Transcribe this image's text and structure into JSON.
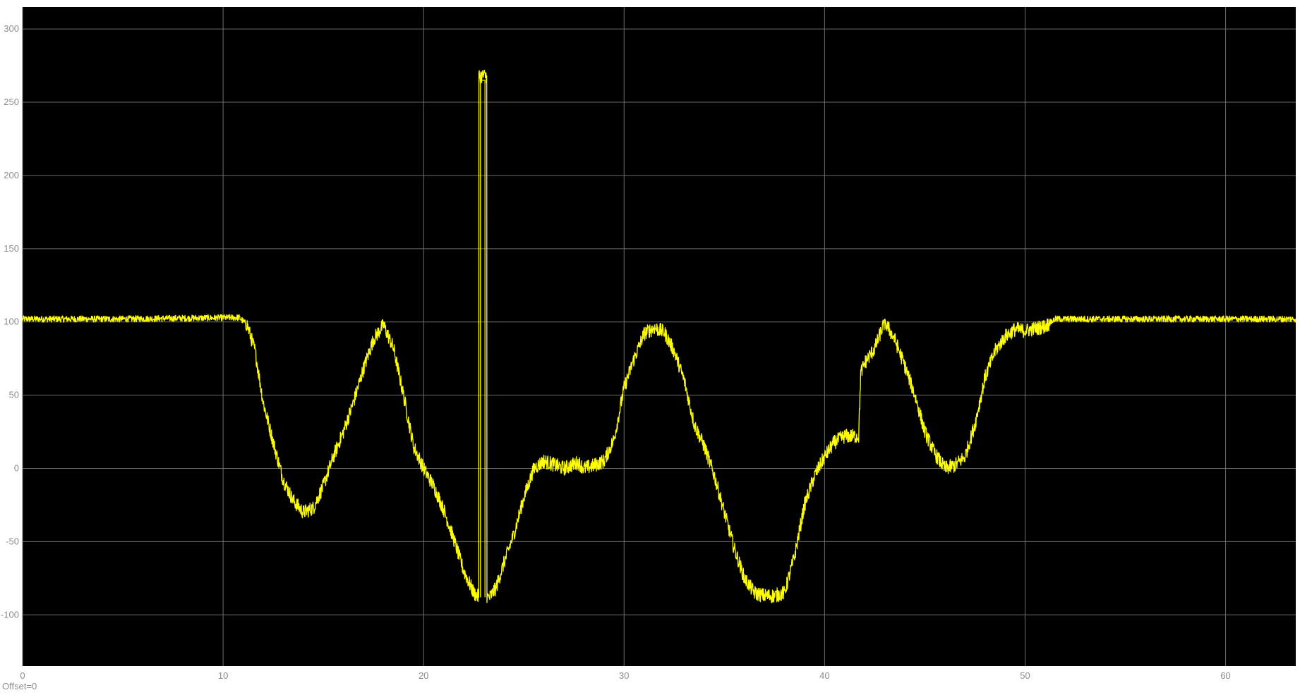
{
  "offset_label": "Offset=0",
  "colors": {
    "plot_background": "#000000",
    "grid": "#6e6e6e",
    "trace": "#ffff00",
    "tick_text": "#8c8c8c",
    "page_background": "#ffffff"
  },
  "chart_data": {
    "type": "line",
    "title": "",
    "xlabel": "",
    "ylabel": "",
    "grid": true,
    "xlim": [
      0,
      63.5
    ],
    "ylim": [
      -135,
      315
    ],
    "x_ticks": [
      0,
      10,
      20,
      30,
      40,
      50,
      60
    ],
    "y_ticks": [
      -100,
      -50,
      0,
      50,
      100,
      150,
      200,
      250,
      300
    ],
    "x_tick_labels": [
      "0",
      "10",
      "20",
      "30",
      "40",
      "50",
      "60"
    ],
    "y_tick_labels": [
      "-100",
      "-50",
      "0",
      "50",
      "100",
      "150",
      "200",
      "250",
      "300"
    ],
    "series": [
      {
        "color": "#ffff00",
        "noisy": true,
        "x": [
          0,
          5,
          10.8,
          11.2,
          11.6,
          12,
          12.5,
          13,
          13.5,
          14,
          14.5,
          15,
          15.5,
          16,
          16.5,
          17,
          17.5,
          18,
          18.5,
          19,
          19.5,
          20,
          20.5,
          21,
          21.5,
          22,
          22.5,
          22.75,
          22.76,
          23.15,
          23.16,
          23.3,
          23.6,
          24,
          24.5,
          25,
          25.5,
          26,
          27,
          27.7,
          28,
          28.5,
          29,
          29.5,
          30,
          30.5,
          31,
          31.5,
          32,
          32.5,
          33,
          33.5,
          34,
          34.5,
          35,
          35.5,
          36,
          36.5,
          37,
          37.5,
          38,
          38.5,
          39,
          39.5,
          40,
          40.5,
          41,
          41.7,
          41.8,
          42,
          42.5,
          43,
          43.5,
          44,
          44.5,
          45,
          45.5,
          46,
          46.5,
          47,
          47.5,
          48,
          48.5,
          49,
          49.5,
          50,
          51,
          51.5,
          52,
          55,
          58,
          63.5
        ],
        "y": [
          102,
          102,
          103,
          98,
          80,
          45,
          18,
          -8,
          -22,
          -30,
          -27,
          -12,
          8,
          25,
          45,
          68,
          88,
          98,
          82,
          50,
          15,
          0,
          -12,
          -28,
          -48,
          -70,
          -85,
          -88,
          268,
          268,
          -88,
          -88,
          -82,
          -65,
          -45,
          -20,
          0,
          5,
          0,
          4,
          0,
          2,
          5,
          20,
          55,
          75,
          92,
          96,
          93,
          80,
          60,
          30,
          15,
          -5,
          -30,
          -55,
          -75,
          -85,
          -87,
          -87,
          -85,
          -60,
          -25,
          -5,
          8,
          18,
          22,
          22,
          65,
          72,
          82,
          100,
          88,
          70,
          50,
          25,
          10,
          0,
          2,
          8,
          30,
          62,
          80,
          90,
          95,
          94,
          97,
          102,
          102,
          102,
          102,
          102
        ]
      }
    ]
  }
}
